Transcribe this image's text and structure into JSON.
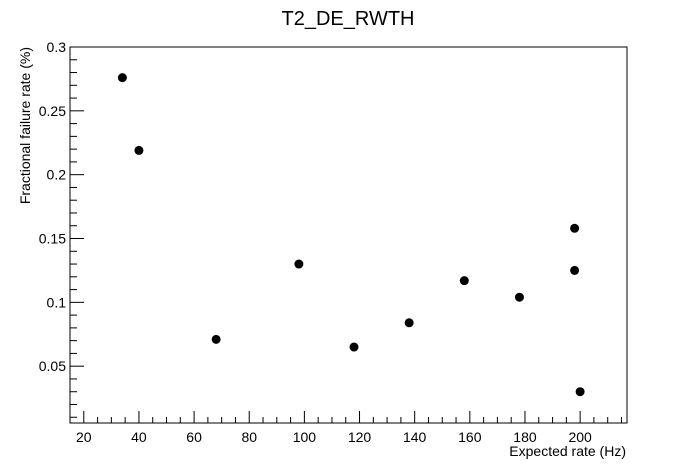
{
  "chart_data": {
    "type": "scatter",
    "title": "T2_DE_RWTH",
    "xlabel": "Expected rate (Hz)",
    "ylabel": "Fractional failure rate (%)",
    "xlim": [
      15,
      217
    ],
    "ylim": [
      0.0055,
      0.3
    ],
    "grid": false,
    "x_ticks": [
      "20",
      "40",
      "60",
      "80",
      "100",
      "120",
      "140",
      "160",
      "180",
      "200"
    ],
    "y_ticks": [
      "0.05",
      "0.1",
      "0.15",
      "0.2",
      "0.25",
      "0.3"
    ],
    "points": [
      {
        "x": 34,
        "y": 0.276
      },
      {
        "x": 40,
        "y": 0.219
      },
      {
        "x": 68,
        "y": 0.071
      },
      {
        "x": 98,
        "y": 0.13
      },
      {
        "x": 118,
        "y": 0.065
      },
      {
        "x": 138,
        "y": 0.084
      },
      {
        "x": 158,
        "y": 0.117
      },
      {
        "x": 178,
        "y": 0.104
      },
      {
        "x": 198,
        "y": 0.158
      },
      {
        "x": 198,
        "y": 0.125
      },
      {
        "x": 200,
        "y": 0.03
      }
    ],
    "marker_color": "#000000"
  }
}
